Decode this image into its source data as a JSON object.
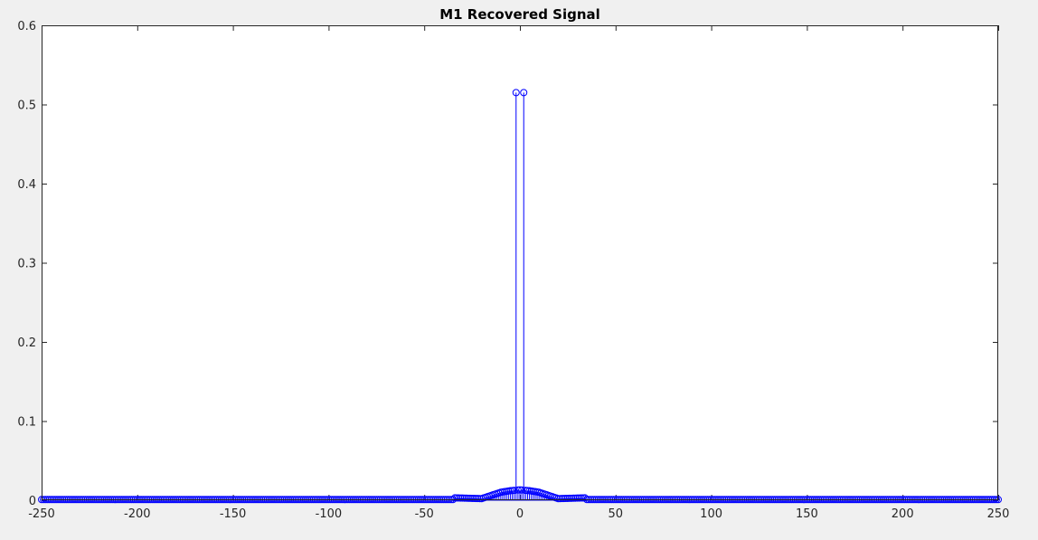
{
  "window": {
    "background": "#f0f0f0"
  },
  "chart_data": {
    "type": "stem",
    "title": "M1 Recovered Signal",
    "xlabel": "",
    "ylabel": "",
    "xlim": [
      -250,
      250
    ],
    "ylim": [
      0,
      0.6
    ],
    "xticks": [
      -250,
      -200,
      -150,
      -100,
      -50,
      0,
      50,
      100,
      150,
      200,
      250
    ],
    "xtick_labels": [
      "-250",
      "-200",
      "-150",
      "-100",
      "-50",
      "0",
      "50",
      "100",
      "150",
      "200",
      "250"
    ],
    "yticks": [
      0,
      0.1,
      0.2,
      0.3,
      0.4,
      0.5,
      0.6
    ],
    "ytick_labels": [
      "0",
      "0.1",
      "0.2",
      "0.3",
      "0.4",
      "0.5",
      "0.6"
    ],
    "grid": false,
    "series": [
      {
        "color": "#0000ff",
        "marker": "circle",
        "x_range": [
          -250,
          250
        ],
        "x_step": 1,
        "baseline": 0.0008,
        "peaks": [
          {
            "x": -2,
            "y": 0.515
          },
          {
            "x": 2,
            "y": 0.515
          }
        ],
        "envelope": [
          {
            "x": -35,
            "y": 0.003
          },
          {
            "x": -20,
            "y": 0.002
          },
          {
            "x": -15,
            "y": 0.006
          },
          {
            "x": -10,
            "y": 0.01
          },
          {
            "x": -5,
            "y": 0.012
          },
          {
            "x": 0,
            "y": 0.013
          },
          {
            "x": 5,
            "y": 0.012
          },
          {
            "x": 10,
            "y": 0.01
          },
          {
            "x": 15,
            "y": 0.006
          },
          {
            "x": 20,
            "y": 0.002
          },
          {
            "x": 35,
            "y": 0.003
          }
        ]
      }
    ]
  }
}
